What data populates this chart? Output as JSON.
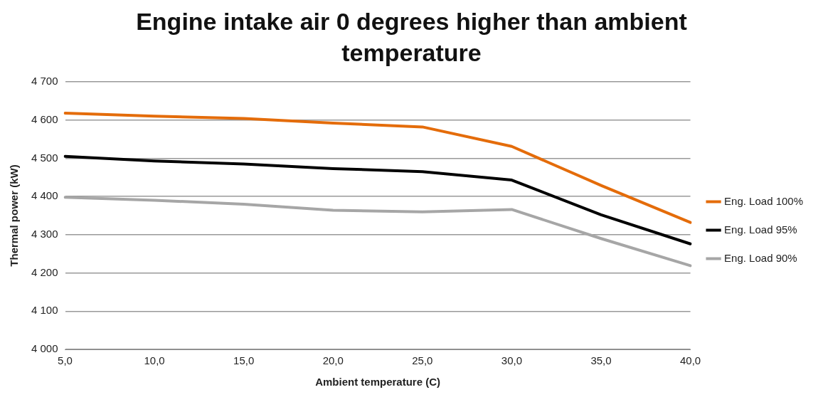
{
  "chart_data": {
    "type": "line",
    "title": "Engine intake air 0 degrees higher than ambient temperature",
    "xlabel": "Ambient temperature (C)",
    "ylabel": "Thermal power (kW)",
    "categories": [
      "5,0",
      "10,0",
      "15,0",
      "20,0",
      "25,0",
      "30,0",
      "35,0",
      "40,0"
    ],
    "series": [
      {
        "name": "Eng. Load 100%",
        "color": "#e46c0a",
        "values": [
          4618,
          4610,
          4604,
          4592,
          4582,
          4531,
          4429,
          4332
        ]
      },
      {
        "name": "Eng. Load 95%",
        "color": "#000000",
        "values": [
          4505,
          4493,
          4485,
          4473,
          4465,
          4443,
          4352,
          4276
        ]
      },
      {
        "name": "Eng. Load 90%",
        "color": "#a6a6a6",
        "values": [
          4398,
          4390,
          4380,
          4364,
          4360,
          4366,
          4290,
          4219
        ]
      }
    ],
    "ylim": [
      4000,
      4700
    ],
    "yticks": [
      {
        "value": 4000,
        "label": "4 000"
      },
      {
        "value": 4100,
        "label": "4 100"
      },
      {
        "value": 4200,
        "label": "4 200"
      },
      {
        "value": 4300,
        "label": "4 300"
      },
      {
        "value": 4400,
        "label": "4 400"
      },
      {
        "value": 4500,
        "label": "4 500"
      },
      {
        "value": 4600,
        "label": "4 600"
      },
      {
        "value": 4700,
        "label": "4 700"
      }
    ],
    "grid": "y",
    "legend": "right",
    "marker": "none",
    "line_style": "solid"
  }
}
